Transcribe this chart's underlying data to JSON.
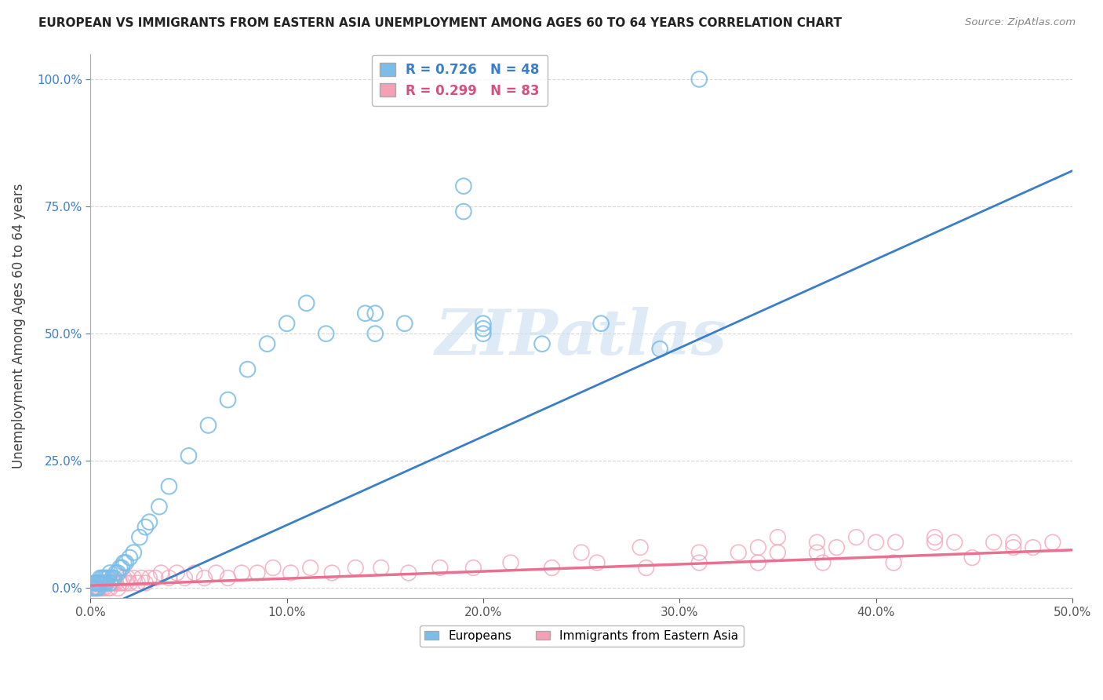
{
  "title": "EUROPEAN VS IMMIGRANTS FROM EASTERN ASIA UNEMPLOYMENT AMONG AGES 60 TO 64 YEARS CORRELATION CHART",
  "source": "Source: ZipAtlas.com",
  "ylabel": "Unemployment Among Ages 60 to 64 years",
  "xlim": [
    0.0,
    0.5
  ],
  "ylim": [
    -0.02,
    1.05
  ],
  "legend_r1": "R = 0.726",
  "legend_n1": "N = 48",
  "legend_r2": "R = 0.299",
  "legend_n2": "N = 83",
  "color_blue": "#7bbde8",
  "color_pink": "#f4a0b5",
  "color_blue_line": "#3a7dc9",
  "color_pink_line": "#e87090",
  "watermark": "ZIPatlas",
  "blue_x": [
    0.001,
    0.002,
    0.002,
    0.003,
    0.003,
    0.004,
    0.004,
    0.005,
    0.005,
    0.006,
    0.006,
    0.007,
    0.007,
    0.008,
    0.008,
    0.009,
    0.01,
    0.01,
    0.011,
    0.012,
    0.013,
    0.014,
    0.015,
    0.016,
    0.017,
    0.018,
    0.02,
    0.022,
    0.025,
    0.028,
    0.03,
    0.035,
    0.04,
    0.05,
    0.06,
    0.07,
    0.08,
    0.09,
    0.1,
    0.11,
    0.12,
    0.14,
    0.16,
    0.2,
    0.23,
    0.26,
    0.29,
    0.31
  ],
  "blue_y": [
    0.0,
    0.01,
    0.0,
    0.01,
    0.0,
    0.01,
    0.0,
    0.02,
    0.01,
    0.01,
    0.02,
    0.01,
    0.02,
    0.01,
    0.02,
    0.02,
    0.01,
    0.03,
    0.02,
    0.02,
    0.03,
    0.03,
    0.04,
    0.04,
    0.05,
    0.05,
    0.06,
    0.07,
    0.1,
    0.12,
    0.13,
    0.16,
    0.2,
    0.26,
    0.32,
    0.37,
    0.43,
    0.48,
    0.52,
    0.56,
    0.5,
    0.54,
    0.52,
    0.51,
    0.48,
    0.52,
    0.47,
    1.0
  ],
  "blue_outliers_x": [
    0.145,
    0.145,
    0.19,
    0.19,
    0.2,
    0.2
  ],
  "blue_outliers_y": [
    0.54,
    0.5,
    0.79,
    0.74,
    0.52,
    0.5
  ],
  "pink_x": [
    0.001,
    0.002,
    0.002,
    0.003,
    0.003,
    0.004,
    0.004,
    0.005,
    0.005,
    0.006,
    0.006,
    0.007,
    0.007,
    0.008,
    0.008,
    0.009,
    0.01,
    0.01,
    0.011,
    0.012,
    0.013,
    0.014,
    0.015,
    0.016,
    0.017,
    0.018,
    0.019,
    0.02,
    0.022,
    0.024,
    0.026,
    0.028,
    0.03,
    0.033,
    0.036,
    0.04,
    0.044,
    0.048,
    0.053,
    0.058,
    0.064,
    0.07,
    0.077,
    0.085,
    0.093,
    0.102,
    0.112,
    0.123,
    0.135,
    0.148,
    0.162,
    0.178,
    0.195,
    0.214,
    0.235,
    0.258,
    0.283,
    0.31,
    0.34,
    0.373,
    0.409,
    0.449,
    0.35,
    0.38,
    0.41,
    0.44,
    0.47,
    0.49,
    0.33,
    0.37,
    0.25,
    0.28,
    0.31,
    0.34,
    0.37,
    0.4,
    0.43,
    0.46,
    0.48,
    0.35,
    0.39,
    0.43,
    0.47
  ],
  "pink_y": [
    0.0,
    0.01,
    0.0,
    0.01,
    0.0,
    0.0,
    0.01,
    0.0,
    0.01,
    0.01,
    0.0,
    0.01,
    0.0,
    0.01,
    0.01,
    0.0,
    0.01,
    0.0,
    0.01,
    0.01,
    0.01,
    0.0,
    0.01,
    0.01,
    0.02,
    0.01,
    0.02,
    0.01,
    0.02,
    0.01,
    0.02,
    0.01,
    0.02,
    0.02,
    0.03,
    0.02,
    0.03,
    0.02,
    0.03,
    0.02,
    0.03,
    0.02,
    0.03,
    0.03,
    0.04,
    0.03,
    0.04,
    0.03,
    0.04,
    0.04,
    0.03,
    0.04,
    0.04,
    0.05,
    0.04,
    0.05,
    0.04,
    0.05,
    0.05,
    0.05,
    0.05,
    0.06,
    0.07,
    0.08,
    0.09,
    0.09,
    0.08,
    0.09,
    0.07,
    0.09,
    0.07,
    0.08,
    0.07,
    0.08,
    0.07,
    0.09,
    0.09,
    0.09,
    0.08,
    0.1,
    0.1,
    0.1,
    0.09
  ]
}
